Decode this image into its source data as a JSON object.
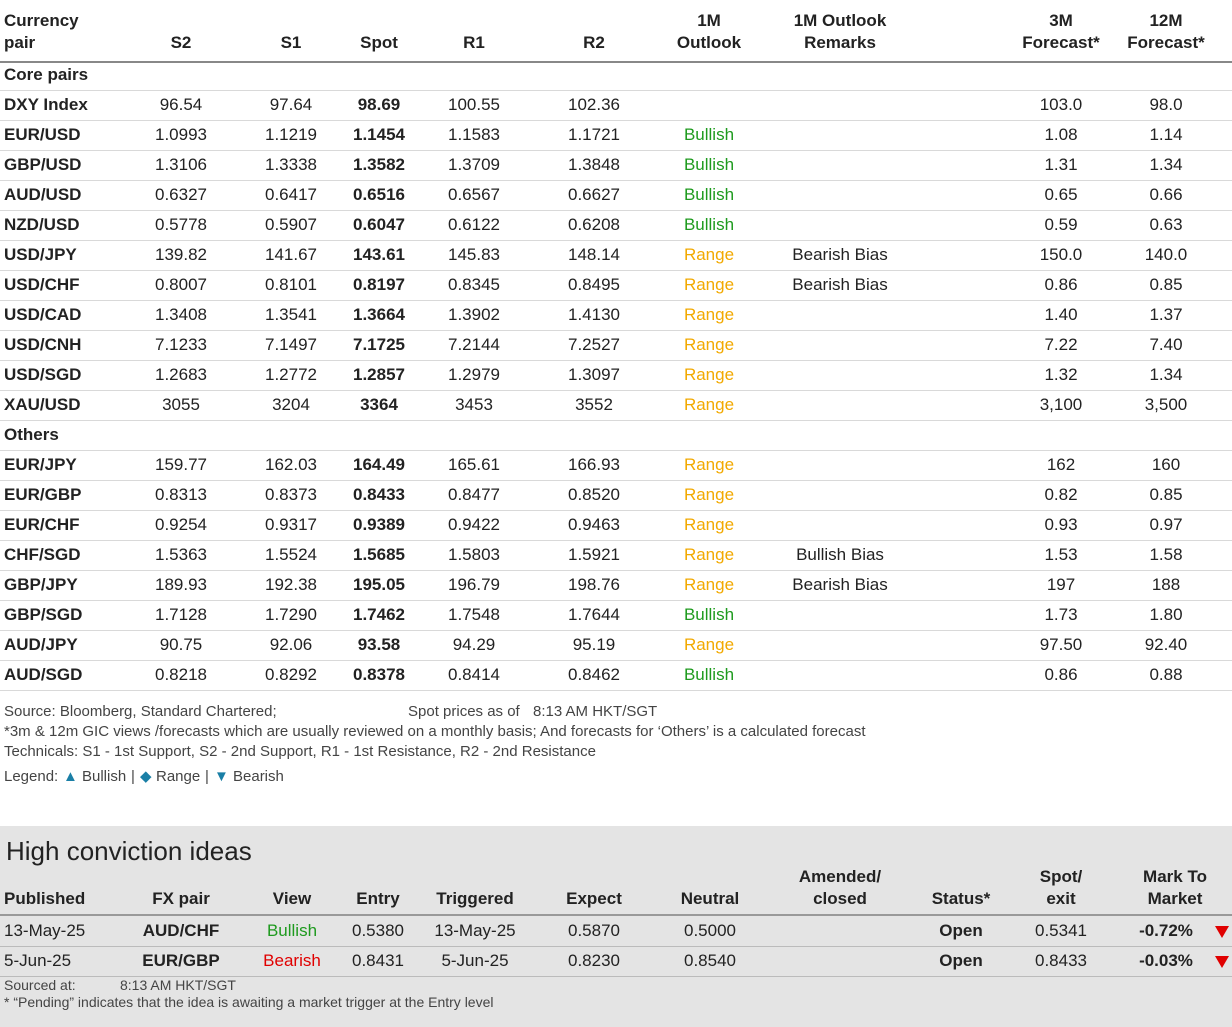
{
  "table": {
    "header": [
      [
        "Currency",
        "pair"
      ],
      [
        "S2"
      ],
      [
        "S1"
      ],
      [
        "Spot"
      ],
      [
        "R1"
      ],
      [
        "R2"
      ],
      [
        "1M",
        "Outlook"
      ],
      [
        "1M Outlook",
        "Remarks"
      ],
      [
        "3M",
        "Forecast*"
      ],
      [
        "12M",
        "Forecast*"
      ]
    ],
    "outlook_colors": {
      "Bullish": "#1e9a1e",
      "Range": "#f2a900"
    },
    "sections": [
      {
        "title": "Core pairs",
        "rows": [
          [
            "DXY Index",
            "96.54",
            "97.64",
            "98.69",
            "100.55",
            "102.36",
            null,
            null,
            "103.0",
            "98.0"
          ],
          [
            "EUR/USD",
            "1.0993",
            "1.1219",
            "1.1454",
            "1.1583",
            "1.1721",
            "Bullish",
            null,
            "1.08",
            "1.14"
          ],
          [
            "GBP/USD",
            "1.3106",
            "1.3338",
            "1.3582",
            "1.3709",
            "1.3848",
            "Bullish",
            null,
            "1.31",
            "1.34"
          ],
          [
            "AUD/USD",
            "0.6327",
            "0.6417",
            "0.6516",
            "0.6567",
            "0.6627",
            "Bullish",
            null,
            "0.65",
            "0.66"
          ],
          [
            "NZD/USD",
            "0.5778",
            "0.5907",
            "0.6047",
            "0.6122",
            "0.6208",
            "Bullish",
            null,
            "0.59",
            "0.63"
          ],
          [
            "USD/JPY",
            "139.82",
            "141.67",
            "143.61",
            "145.83",
            "148.14",
            "Range",
            "Bearish Bias",
            "150.0",
            "140.0"
          ],
          [
            "USD/CHF",
            "0.8007",
            "0.8101",
            "0.8197",
            "0.8345",
            "0.8495",
            "Range",
            "Bearish Bias",
            "0.86",
            "0.85"
          ],
          [
            "USD/CAD",
            "1.3408",
            "1.3541",
            "1.3664",
            "1.3902",
            "1.4130",
            "Range",
            null,
            "1.40",
            "1.37"
          ],
          [
            "USD/CNH",
            "7.1233",
            "7.1497",
            "7.1725",
            "7.2144",
            "7.2527",
            "Range",
            null,
            "7.22",
            "7.40"
          ],
          [
            "USD/SGD",
            "1.2683",
            "1.2772",
            "1.2857",
            "1.2979",
            "1.3097",
            "Range",
            null,
            "1.32",
            "1.34"
          ],
          [
            "XAU/USD",
            "3055",
            "3204",
            "3364",
            "3453",
            "3552",
            "Range",
            null,
            "3,100",
            "3,500"
          ]
        ]
      },
      {
        "title": "Others",
        "rows": [
          [
            "EUR/JPY",
            "159.77",
            "162.03",
            "164.49",
            "165.61",
            "166.93",
            "Range",
            null,
            "162",
            "160"
          ],
          [
            "EUR/GBP",
            "0.8313",
            "0.8373",
            "0.8433",
            "0.8477",
            "0.8520",
            "Range",
            null,
            "0.82",
            "0.85"
          ],
          [
            "EUR/CHF",
            "0.9254",
            "0.9317",
            "0.9389",
            "0.9422",
            "0.9463",
            "Range",
            null,
            "0.93",
            "0.97"
          ],
          [
            "CHF/SGD",
            "1.5363",
            "1.5524",
            "1.5685",
            "1.5803",
            "1.5921",
            "Range",
            "Bullish Bias",
            "1.53",
            "1.58"
          ],
          [
            "GBP/JPY",
            "189.93",
            "192.38",
            "195.05",
            "196.79",
            "198.76",
            "Range",
            "Bearish Bias",
            "197",
            "188"
          ],
          [
            "GBP/SGD",
            "1.7128",
            "1.7290",
            "1.7462",
            "1.7548",
            "1.7644",
            "Bullish",
            null,
            "1.73",
            "1.80"
          ],
          [
            "AUD/JPY",
            "90.75",
            "92.06",
            "93.58",
            "94.29",
            "95.19",
            "Range",
            null,
            "97.50",
            "92.40"
          ],
          [
            "AUD/SGD",
            "0.8218",
            "0.8292",
            "0.8378",
            "0.8414",
            "0.8462",
            "Bullish",
            null,
            "0.86",
            "0.88"
          ]
        ]
      }
    ]
  },
  "notes": {
    "source": "Source: Bloomberg, Standard Chartered;",
    "spot_label": "Spot prices as of",
    "spot_time": "8:13 AM HKT/SGT",
    "footnote": "*3m & 12m GIC views /forecasts which are usually reviewed on a monthly basis; And forecasts for ‘Others’ is a calculated forecast",
    "technicals": "Technicals: S1 - 1st Support, S2 - 2nd Support, R1 - 1st Resistance, R2 - 2nd Resistance",
    "legend": {
      "label": "Legend:",
      "separator": "|",
      "color": "#1a7fa6",
      "items": [
        {
          "symbol": "▲",
          "text": "Bullish"
        },
        {
          "symbol": "◆",
          "text": "Range"
        },
        {
          "symbol": "▼",
          "text": "Bearish"
        }
      ]
    }
  },
  "ideas": {
    "title": "High conviction ideas",
    "header": [
      [
        "Published"
      ],
      [
        "FX pair"
      ],
      [
        "View"
      ],
      [
        "Entry"
      ],
      [
        "Triggered"
      ],
      [
        "Expect"
      ],
      [
        "Neutral"
      ],
      [
        "Amended/",
        "closed"
      ],
      [
        "Status*"
      ],
      [
        "Spot/",
        "exit"
      ],
      [
        "Mark To",
        "Market"
      ]
    ],
    "view_colors": {
      "Bullish": "#1e9a1e",
      "Bearish": "#e00000"
    },
    "rows": [
      [
        "13-May-25",
        "AUD/CHF",
        "Bullish",
        "0.5380",
        "13-May-25",
        "0.5870",
        "0.5000",
        null,
        "Open",
        "0.5341",
        "-0.72%"
      ],
      [
        "5-Jun-25",
        "EUR/GBP",
        "Bearish",
        "0.8431",
        "5-Jun-25",
        "0.8230",
        "0.8540",
        null,
        "Open",
        "0.8433",
        "-0.03%"
      ]
    ],
    "sourced_label": "Sourced at:",
    "sourced_time": "8:13 AM HKT/SGT",
    "pending_note": "* “Pending” indicates that the idea is awaiting a market trigger at the Entry level"
  }
}
